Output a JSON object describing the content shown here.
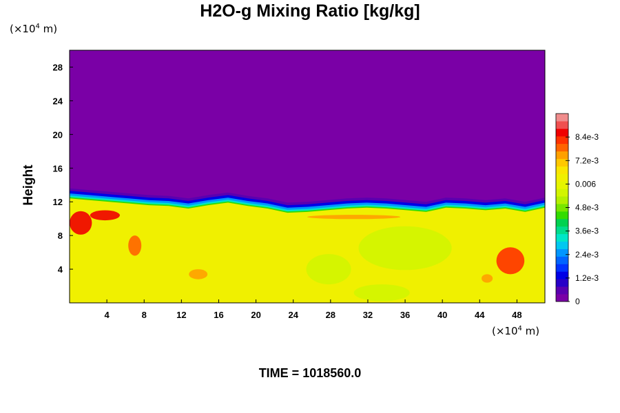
{
  "chart_data": {
    "type": "heatmap",
    "title": "H2O-g Mixing Ratio [kg/kg]",
    "ylabel": "Height",
    "xlabel": "",
    "x_unit": {
      "prefix": "(×10",
      "exp": "4",
      "suffix": " m)"
    },
    "y_unit": {
      "prefix": "(×10",
      "exp": "4",
      "suffix": " m)"
    },
    "xlim": [
      0,
      51
    ],
    "ylim": [
      0,
      30
    ],
    "x_ticks": [
      4,
      8,
      12,
      16,
      20,
      24,
      28,
      32,
      36,
      40,
      44,
      48
    ],
    "y_ticks": [
      4,
      8,
      12,
      16,
      20,
      24,
      28
    ],
    "time_label": "TIME = 1018560.0",
    "colorbar": {
      "range": [
        0,
        0.0096
      ],
      "tick_values": [
        0,
        0.0012,
        0.0024,
        0.0036,
        0.0048,
        0.006,
        0.0072,
        0.0084
      ],
      "tick_labels": [
        "0",
        "1.2e-3",
        "2.4e-3",
        "3.6e-3",
        "4.8e-3",
        "0.006",
        "7.2e-3",
        "8.4e-3"
      ],
      "colors": [
        "#7a00a6",
        "#5a00b0",
        "#2800c8",
        "#0000e6",
        "#0032ff",
        "#0064ff",
        "#0096ff",
        "#00c8f0",
        "#00e6c8",
        "#00dc8c",
        "#00d250",
        "#32dc00",
        "#78e600",
        "#b4f000",
        "#d2f500",
        "#e6f500",
        "#f0f000",
        "#fae600",
        "#ffc800",
        "#ffa000",
        "#ff6400",
        "#ff3200",
        "#f00000",
        "#f05050",
        "#f08c8c"
      ]
    },
    "field": {
      "upper_value": 0,
      "lower_typical_value": 0.0062,
      "moisture_top_height": [
        12.4,
        12.2,
        12.0,
        11.8,
        11.6,
        11.5,
        11.2,
        11.6,
        11.9,
        11.5,
        11.2,
        10.7,
        10.8,
        11.0,
        11.2,
        11.3,
        11.2,
        11.0,
        10.8,
        11.3,
        11.2,
        11.0,
        11.2,
        10.8,
        11.3
      ],
      "pockets": [
        {
          "x": 1.2,
          "y": 9.5,
          "rx": 1.2,
          "ry": 1.4,
          "value": 0.0085
        },
        {
          "x": 3.8,
          "y": 10.4,
          "rx": 1.6,
          "ry": 0.6,
          "value": 0.0088
        },
        {
          "x": 7.0,
          "y": 6.8,
          "rx": 0.7,
          "ry": 1.2,
          "value": 0.0078
        },
        {
          "x": 13.8,
          "y": 3.4,
          "rx": 1.0,
          "ry": 0.6,
          "value": 0.0074
        },
        {
          "x": 47.3,
          "y": 5.0,
          "rx": 1.5,
          "ry": 1.6,
          "value": 0.0082
        },
        {
          "x": 44.8,
          "y": 2.9,
          "rx": 0.6,
          "ry": 0.5,
          "value": 0.0076
        },
        {
          "x": 36.0,
          "y": 6.5,
          "rx": 5.0,
          "ry": 2.6,
          "value": 0.0056
        },
        {
          "x": 27.8,
          "y": 4.0,
          "rx": 2.4,
          "ry": 1.8,
          "value": 0.0056
        },
        {
          "x": 33.5,
          "y": 1.2,
          "rx": 3.0,
          "ry": 1.0,
          "value": 0.0056
        },
        {
          "x": 30.5,
          "y": 10.2,
          "rx": 5.0,
          "ry": 0.25,
          "value": 0.0076
        }
      ]
    }
  }
}
